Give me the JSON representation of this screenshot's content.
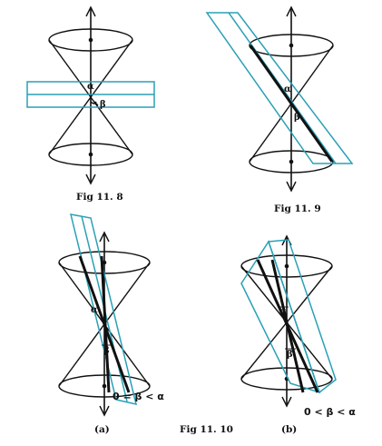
{
  "labels": {
    "fig_11_8": "Fig 11. 8",
    "fig_11_9": "Fig 11. 9",
    "fig_11_10": "Fig 11. 10",
    "sub_a": "(a)",
    "sub_b": "(b)",
    "alpha": "α",
    "beta": "β",
    "cond_a": "0 = β < α",
    "cond_b": "0 < β < α"
  },
  "colors": {
    "plane": "#2aa0b6",
    "line": "#111111"
  }
}
